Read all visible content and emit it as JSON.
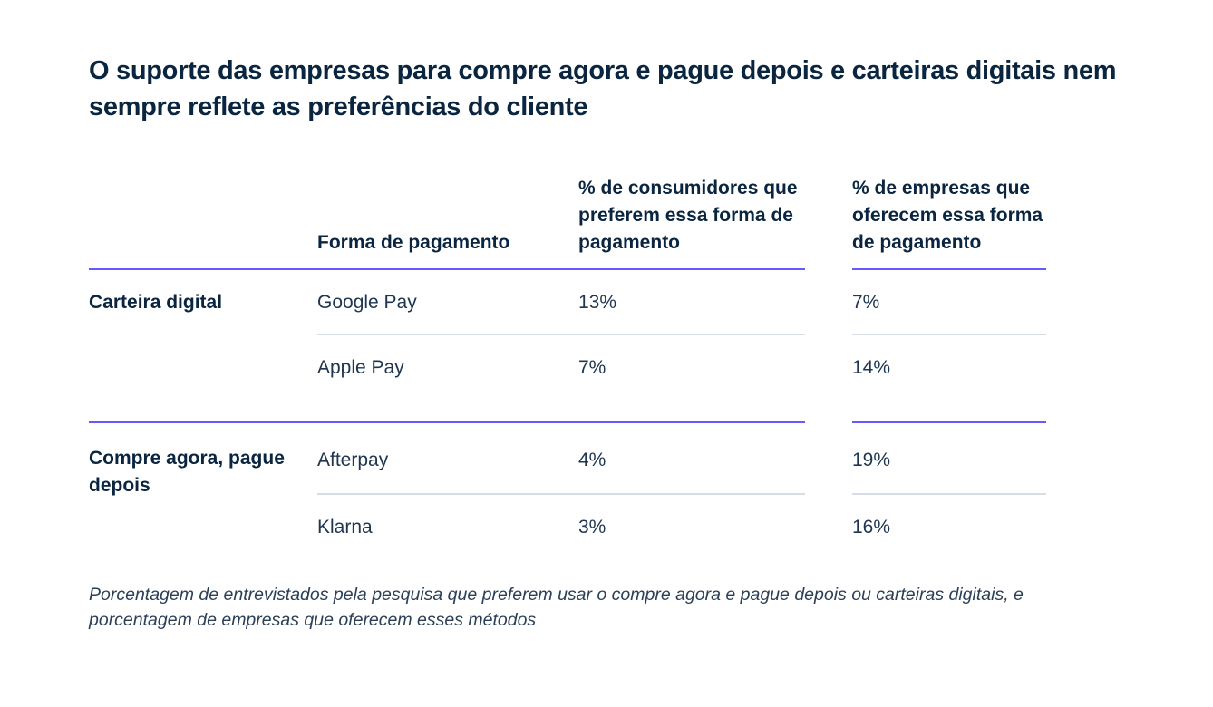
{
  "title": "O suporte das empresas para compre agora e pague depois e carteiras digitais nem sempre reflete as preferências do cliente",
  "table": {
    "headers": {
      "method": "Forma de pagamento",
      "consumers": "% de consumidores que preferem essa forma de pagamento",
      "businesses": "% de empresas que oferecem essa forma de pagamento"
    },
    "groups": [
      {
        "label": "Carteira digital",
        "rows": [
          {
            "method": "Google Pay",
            "consumers": "13%",
            "businesses": "7%"
          },
          {
            "method": "Apple Pay",
            "consumers": "7%",
            "businesses": "14%"
          }
        ]
      },
      {
        "label": "Compre agora, pague depois",
        "rows": [
          {
            "method": "Afterpay",
            "consumers": "4%",
            "businesses": "19%"
          },
          {
            "method": "Klarna",
            "consumers": "3%",
            "businesses": "16%"
          }
        ]
      }
    ]
  },
  "footnote": "Porcentagem de entrevistados pela pesquisa que preferem usar o compre agora e pague depois ou carteiras digitais, e porcentagem de empresas que oferecem esses métodos",
  "colors": {
    "accent_rule": "#635bff",
    "soft_rule": "#d7dde6",
    "text": "#0a2540"
  }
}
